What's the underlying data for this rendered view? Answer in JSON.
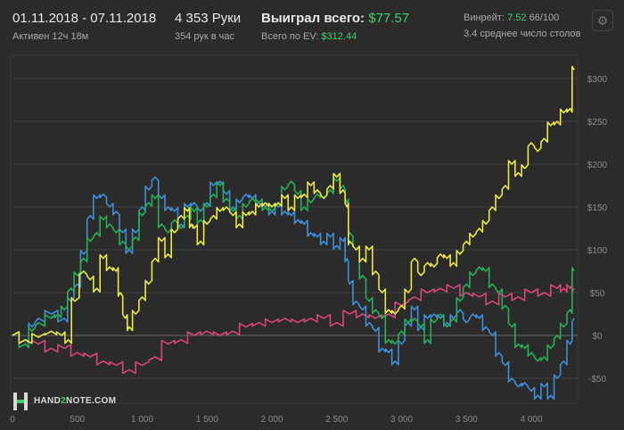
{
  "header": {
    "date_range": "01.11.2018 - 07.11.2018",
    "active": "Активен 12ч 18м",
    "hands": "4 353 Руки",
    "hands_per_hour": "354 рук в час",
    "won_label": "Выиграл всего:",
    "won_value": "$77.57",
    "ev_label": "Всего по EV:",
    "ev_value": "$312.44",
    "winrate_label": "Винрейт:",
    "winrate_value": "7.52",
    "winrate_hands": "66/100",
    "avg_tables": "3.4 среднее число столов",
    "settings_icon": "gear-icon"
  },
  "logo": {
    "text_a": "HAND",
    "text_b": "2",
    "text_c": "NOTE.COM"
  },
  "chart_data": {
    "type": "line",
    "xlim": [
      0,
      4400
    ],
    "ylim": [
      -80,
      320
    ],
    "x_ticks": [
      0,
      500,
      1000,
      1500,
      2000,
      2500,
      3000,
      3500,
      4000
    ],
    "x_tick_labels": [
      "0",
      "500",
      "1 000",
      "1 500",
      "2 000",
      "2 500",
      "3 000",
      "3 500",
      "4 000"
    ],
    "y_ticks": [
      -50,
      0,
      50,
      100,
      150,
      200,
      250,
      300
    ],
    "y_tick_labels": [
      "-$50",
      "$0",
      "$50",
      "$100",
      "$150",
      "$200",
      "$250",
      "$300"
    ],
    "grid": "horizontal",
    "colors": {
      "yellow": "#e9e845",
      "green": "#27ae58",
      "blue": "#3f8fd8",
      "pink": "#d9457a"
    },
    "series": [
      {
        "color": "yellow",
        "points": [
          [
            0,
            0
          ],
          [
            100,
            -5
          ],
          [
            200,
            -2
          ],
          [
            300,
            5
          ],
          [
            380,
            0
          ],
          [
            430,
            -5
          ],
          [
            480,
            40
          ],
          [
            550,
            75
          ],
          [
            600,
            65
          ],
          [
            650,
            55
          ],
          [
            700,
            90
          ],
          [
            750,
            80
          ],
          [
            800,
            75
          ],
          [
            830,
            50
          ],
          [
            870,
            20
          ],
          [
            900,
            10
          ],
          [
            950,
            25
          ],
          [
            1000,
            45
          ],
          [
            1050,
            60
          ],
          [
            1100,
            90
          ],
          [
            1150,
            110
          ],
          [
            1200,
            95
          ],
          [
            1250,
            120
          ],
          [
            1300,
            140
          ],
          [
            1350,
            145
          ],
          [
            1380,
            130
          ],
          [
            1400,
            125
          ],
          [
            1450,
            110
          ],
          [
            1500,
            130
          ],
          [
            1550,
            140
          ],
          [
            1600,
            145
          ],
          [
            1650,
            150
          ],
          [
            1700,
            140
          ],
          [
            1750,
            130
          ],
          [
            1800,
            140
          ],
          [
            1850,
            145
          ],
          [
            1900,
            150
          ],
          [
            1950,
            155
          ],
          [
            2000,
            150
          ],
          [
            2050,
            155
          ],
          [
            2100,
            160
          ],
          [
            2150,
            150
          ],
          [
            2200,
            160
          ],
          [
            2250,
            165
          ],
          [
            2300,
            175
          ],
          [
            2350,
            170
          ],
          [
            2400,
            160
          ],
          [
            2450,
            175
          ],
          [
            2500,
            185
          ],
          [
            2550,
            170
          ],
          [
            2580,
            150
          ],
          [
            2600,
            110
          ],
          [
            2650,
            100
          ],
          [
            2700,
            90
          ],
          [
            2750,
            100
          ],
          [
            2800,
            75
          ],
          [
            2850,
            50
          ],
          [
            2900,
            30
          ],
          [
            2950,
            25
          ],
          [
            3000,
            35
          ],
          [
            3050,
            50
          ],
          [
            3100,
            90
          ],
          [
            3150,
            70
          ],
          [
            3200,
            85
          ],
          [
            3250,
            80
          ],
          [
            3300,
            95
          ],
          [
            3350,
            90
          ],
          [
            3400,
            85
          ],
          [
            3450,
            95
          ],
          [
            3500,
            110
          ],
          [
            3550,
            115
          ],
          [
            3600,
            125
          ],
          [
            3650,
            130
          ],
          [
            3700,
            150
          ],
          [
            3750,
            160
          ],
          [
            3800,
            175
          ],
          [
            3850,
            200
          ],
          [
            3900,
            190
          ],
          [
            3950,
            195
          ],
          [
            4000,
            225
          ],
          [
            4050,
            215
          ],
          [
            4100,
            230
          ],
          [
            4150,
            245
          ],
          [
            4200,
            250
          ],
          [
            4250,
            260
          ],
          [
            4300,
            265
          ],
          [
            4330,
            310
          ]
        ]
      },
      {
        "color": "green",
        "points": [
          [
            0,
            0
          ],
          [
            100,
            -10
          ],
          [
            150,
            5
          ],
          [
            200,
            15
          ],
          [
            300,
            20
          ],
          [
            350,
            25
          ],
          [
            400,
            30
          ],
          [
            450,
            55
          ],
          [
            500,
            70
          ],
          [
            550,
            90
          ],
          [
            600,
            110
          ],
          [
            650,
            120
          ],
          [
            700,
            135
          ],
          [
            750,
            130
          ],
          [
            800,
            120
          ],
          [
            850,
            110
          ],
          [
            900,
            100
          ],
          [
            950,
            115
          ],
          [
            1000,
            140
          ],
          [
            1050,
            155
          ],
          [
            1100,
            160
          ],
          [
            1150,
            130
          ],
          [
            1200,
            120
          ],
          [
            1250,
            135
          ],
          [
            1300,
            125
          ],
          [
            1350,
            140
          ],
          [
            1400,
            145
          ],
          [
            1450,
            135
          ],
          [
            1500,
            150
          ],
          [
            1550,
            165
          ],
          [
            1600,
            175
          ],
          [
            1650,
            160
          ],
          [
            1700,
            145
          ],
          [
            1750,
            140
          ],
          [
            1800,
            150
          ],
          [
            1850,
            160
          ],
          [
            1900,
            155
          ],
          [
            1950,
            150
          ],
          [
            2000,
            145
          ],
          [
            2050,
            155
          ],
          [
            2100,
            170
          ],
          [
            2150,
            180
          ],
          [
            2200,
            165
          ],
          [
            2250,
            150
          ],
          [
            2300,
            155
          ],
          [
            2350,
            165
          ],
          [
            2400,
            160
          ],
          [
            2450,
            170
          ],
          [
            2500,
            180
          ],
          [
            2550,
            175
          ],
          [
            2580,
            155
          ],
          [
            2600,
            120
          ],
          [
            2650,
            100
          ],
          [
            2700,
            70
          ],
          [
            2750,
            40
          ],
          [
            2800,
            30
          ],
          [
            2850,
            20
          ],
          [
            2900,
            -5
          ],
          [
            2950,
            -10
          ],
          [
            3000,
            5
          ],
          [
            3050,
            15
          ],
          [
            3100,
            20
          ],
          [
            3150,
            10
          ],
          [
            3200,
            -5
          ],
          [
            3250,
            15
          ],
          [
            3300,
            25
          ],
          [
            3350,
            10
          ],
          [
            3400,
            20
          ],
          [
            3450,
            40
          ],
          [
            3500,
            60
          ],
          [
            3550,
            70
          ],
          [
            3600,
            80
          ],
          [
            3650,
            75
          ],
          [
            3700,
            60
          ],
          [
            3750,
            50
          ],
          [
            3800,
            35
          ],
          [
            3850,
            10
          ],
          [
            3900,
            -10
          ],
          [
            3950,
            -15
          ],
          [
            4000,
            -20
          ],
          [
            4050,
            -30
          ],
          [
            4100,
            -25
          ],
          [
            4150,
            -15
          ],
          [
            4200,
            0
          ],
          [
            4250,
            10
          ],
          [
            4300,
            30
          ],
          [
            4330,
            75
          ]
        ]
      },
      {
        "color": "blue",
        "points": [
          [
            0,
            0
          ],
          [
            100,
            -5
          ],
          [
            150,
            10
          ],
          [
            200,
            20
          ],
          [
            300,
            25
          ],
          [
            400,
            20
          ],
          [
            450,
            40
          ],
          [
            500,
            60
          ],
          [
            550,
            95
          ],
          [
            600,
            140
          ],
          [
            650,
            160
          ],
          [
            700,
            165
          ],
          [
            750,
            150
          ],
          [
            800,
            145
          ],
          [
            850,
            120
          ],
          [
            900,
            100
          ],
          [
            950,
            120
          ],
          [
            1000,
            150
          ],
          [
            1050,
            170
          ],
          [
            1100,
            185
          ],
          [
            1150,
            160
          ],
          [
            1200,
            150
          ],
          [
            1250,
            145
          ],
          [
            1300,
            130
          ],
          [
            1350,
            150
          ],
          [
            1400,
            155
          ],
          [
            1450,
            145
          ],
          [
            1500,
            155
          ],
          [
            1550,
            175
          ],
          [
            1600,
            180
          ],
          [
            1650,
            165
          ],
          [
            1700,
            150
          ],
          [
            1750,
            155
          ],
          [
            1800,
            165
          ],
          [
            1850,
            160
          ],
          [
            1900,
            155
          ],
          [
            1950,
            150
          ],
          [
            2000,
            145
          ],
          [
            2050,
            150
          ],
          [
            2100,
            145
          ],
          [
            2150,
            140
          ],
          [
            2200,
            135
          ],
          [
            2250,
            130
          ],
          [
            2300,
            120
          ],
          [
            2350,
            115
          ],
          [
            2400,
            110
          ],
          [
            2450,
            115
          ],
          [
            2500,
            105
          ],
          [
            2550,
            110
          ],
          [
            2580,
            90
          ],
          [
            2600,
            60
          ],
          [
            2650,
            40
          ],
          [
            2700,
            30
          ],
          [
            2750,
            15
          ],
          [
            2800,
            5
          ],
          [
            2850,
            -15
          ],
          [
            2900,
            -20
          ],
          [
            2950,
            -30
          ],
          [
            3000,
            -10
          ],
          [
            3050,
            15
          ],
          [
            3100,
            30
          ],
          [
            3150,
            10
          ],
          [
            3200,
            20
          ],
          [
            3250,
            25
          ],
          [
            3300,
            20
          ],
          [
            3350,
            15
          ],
          [
            3400,
            20
          ],
          [
            3450,
            30
          ],
          [
            3500,
            15
          ],
          [
            3550,
            25
          ],
          [
            3600,
            20
          ],
          [
            3650,
            10
          ],
          [
            3700,
            0
          ],
          [
            3750,
            -20
          ],
          [
            3800,
            -35
          ],
          [
            3850,
            -50
          ],
          [
            3900,
            -60
          ],
          [
            3950,
            -55
          ],
          [
            4000,
            -65
          ],
          [
            4050,
            -70
          ],
          [
            4100,
            -60
          ],
          [
            4150,
            -70
          ],
          [
            4200,
            -50
          ],
          [
            4250,
            -30
          ],
          [
            4300,
            -10
          ],
          [
            4330,
            20
          ]
        ]
      },
      {
        "color": "pink",
        "points": [
          [
            0,
            0
          ],
          [
            100,
            -5
          ],
          [
            200,
            -10
          ],
          [
            300,
            -15
          ],
          [
            400,
            -15
          ],
          [
            500,
            -20
          ],
          [
            600,
            -25
          ],
          [
            700,
            -30
          ],
          [
            800,
            -35
          ],
          [
            900,
            -40
          ],
          [
            1000,
            -35
          ],
          [
            1100,
            -25
          ],
          [
            1200,
            -10
          ],
          [
            1300,
            -5
          ],
          [
            1400,
            0
          ],
          [
            1500,
            5
          ],
          [
            1600,
            0
          ],
          [
            1700,
            5
          ],
          [
            1800,
            10
          ],
          [
            1900,
            15
          ],
          [
            2000,
            15
          ],
          [
            2100,
            20
          ],
          [
            2200,
            15
          ],
          [
            2300,
            20
          ],
          [
            2400,
            20
          ],
          [
            2500,
            15
          ],
          [
            2600,
            25
          ],
          [
            2700,
            25
          ],
          [
            2800,
            20
          ],
          [
            2900,
            25
          ],
          [
            3000,
            35
          ],
          [
            3100,
            45
          ],
          [
            3200,
            50
          ],
          [
            3300,
            55
          ],
          [
            3400,
            55
          ],
          [
            3500,
            50
          ],
          [
            3600,
            45
          ],
          [
            3700,
            40
          ],
          [
            3800,
            45
          ],
          [
            3900,
            45
          ],
          [
            4000,
            50
          ],
          [
            4100,
            50
          ],
          [
            4200,
            55
          ],
          [
            4250,
            55
          ],
          [
            4300,
            55
          ],
          [
            4330,
            55
          ]
        ]
      }
    ]
  }
}
